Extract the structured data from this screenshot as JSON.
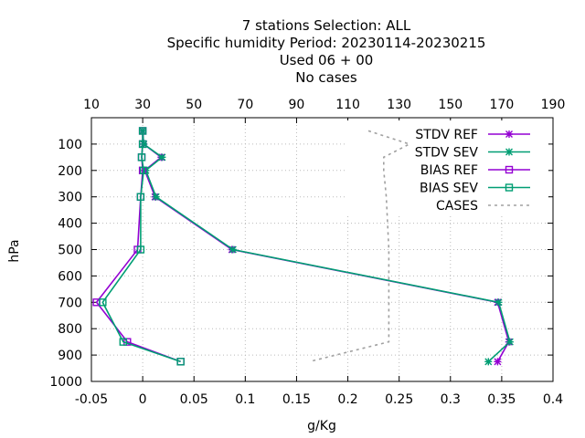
{
  "chart_data": {
    "type": "line",
    "title_lines": [
      "7 stations Selection: ALL",
      "Specific humidity  Period: 20230114-20230215",
      "Used  06 + 00",
      "No cases"
    ],
    "xlabel": "g/Kg",
    "ylabel": "hPa",
    "xlim": [
      -0.05,
      0.4
    ],
    "x_ticks": [
      "-0.05",
      "0",
      "0.05",
      "0.1",
      "0.15",
      "0.2",
      "0.25",
      "0.3",
      "0.35",
      "0.4"
    ],
    "x2lim": [
      10,
      190
    ],
    "x2_ticks": [
      "10",
      "30",
      "50",
      "70",
      "90",
      "110",
      "130",
      "150",
      "170",
      "190"
    ],
    "ylim": [
      1000,
      0
    ],
    "y_ticks": [
      "100",
      "200",
      "300",
      "400",
      "500",
      "600",
      "700",
      "800",
      "900",
      "1000"
    ],
    "legend_position": "top-right",
    "colors": {
      "ref": "#9400d3",
      "sev": "#009e73",
      "cases": "#a0a0a0"
    },
    "series": [
      {
        "name": "STDV REF",
        "color": "#9400d3",
        "marker": "x",
        "points": [
          [
            0.0,
            50
          ],
          [
            0.001,
            100
          ],
          [
            0.018,
            150
          ],
          [
            0.002,
            200
          ],
          [
            0.012,
            300
          ],
          [
            0.087,
            500
          ],
          [
            0.346,
            700
          ],
          [
            0.357,
            850
          ],
          [
            0.346,
            925
          ]
        ]
      },
      {
        "name": "STDV SEV",
        "color": "#009e73",
        "marker": "x",
        "points": [
          [
            0.0,
            50
          ],
          [
            0.001,
            100
          ],
          [
            0.019,
            150
          ],
          [
            0.003,
            200
          ],
          [
            0.013,
            300
          ],
          [
            0.088,
            500
          ],
          [
            0.347,
            700
          ],
          [
            0.358,
            850
          ],
          [
            0.337,
            925
          ]
        ]
      },
      {
        "name": "BIAS REF",
        "color": "#9400d3",
        "marker": "square",
        "points": [
          [
            0.0,
            50
          ],
          [
            0.0,
            100
          ],
          [
            -0.001,
            150
          ],
          [
            0.0,
            200
          ],
          [
            -0.002,
            300
          ],
          [
            -0.005,
            500
          ],
          [
            -0.045,
            700
          ],
          [
            -0.015,
            850
          ],
          [
            0.037,
            925
          ]
        ]
      },
      {
        "name": "BIAS SEV",
        "color": "#009e73",
        "marker": "square",
        "points": [
          [
            0.0,
            50
          ],
          [
            0.0,
            100
          ],
          [
            -0.001,
            150
          ],
          [
            0.001,
            200
          ],
          [
            -0.002,
            300
          ],
          [
            -0.002,
            500
          ],
          [
            -0.039,
            700
          ],
          [
            -0.019,
            850
          ],
          [
            0.037,
            925
          ]
        ]
      },
      {
        "name": "CASES",
        "color": "#a0a0a0",
        "axis": "top",
        "dashed": true,
        "points": [
          [
            118,
            50
          ],
          [
            134,
            100
          ],
          [
            124,
            150
          ],
          [
            124,
            200
          ],
          [
            125,
            300
          ],
          [
            126,
            500
          ],
          [
            126,
            700
          ],
          [
            126,
            850
          ],
          [
            95,
            925
          ]
        ]
      }
    ]
  }
}
